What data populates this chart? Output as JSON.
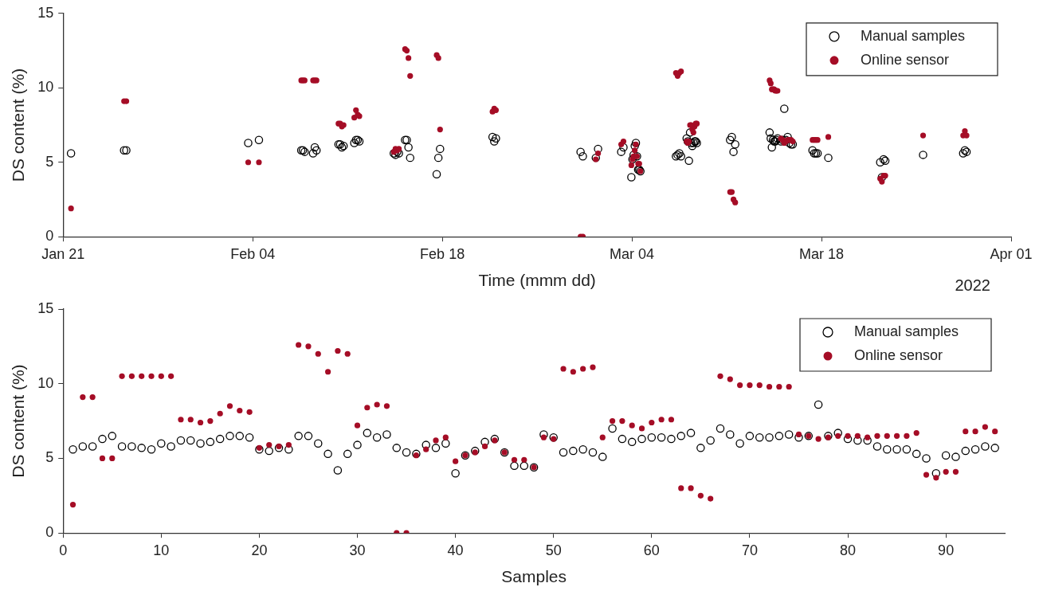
{
  "chart_data": [
    {
      "type": "scatter",
      "xlabel": "Time (mmm dd)",
      "ylabel": "DS content (%)",
      "annotations": [
        "2022"
      ],
      "legend": "top right",
      "marker": "circle",
      "xlim": [
        "2022-01-21",
        "2022-04-01"
      ],
      "xticks": [
        {
          "value": "2022-01-21",
          "label": "Jan 21"
        },
        {
          "value": "2022-02-04",
          "label": "Feb 04"
        },
        {
          "value": "2022-02-18",
          "label": "Feb 18"
        },
        {
          "value": "2022-03-04",
          "label": "Mar 04"
        },
        {
          "value": "2022-03-18",
          "label": "Mar 18"
        },
        {
          "value": "2022-04-01",
          "label": "Apr 01"
        }
      ],
      "ylim": [
        0,
        15
      ],
      "yticks": [
        0,
        5,
        10,
        15
      ],
      "x": [
        "2022-01-21T14:00",
        "2022-01-25T12:00",
        "2022-01-25T16:00",
        "2022-02-03T16:00",
        "2022-02-04T11:00",
        "2022-02-07T14:00",
        "2022-02-07T17:00",
        "2022-02-07T20:00",
        "2022-02-08T11:00",
        "2022-02-08T14:00",
        "2022-02-08T17:00",
        "2022-02-10T08:00",
        "2022-02-10T11:00",
        "2022-02-10T14:00",
        "2022-02-10T17:00",
        "2022-02-11T12:00",
        "2022-02-11T15:00",
        "2022-02-11T18:00",
        "2022-02-11T21:00",
        "2022-02-14T10:00",
        "2022-02-14T13:00",
        "2022-02-14T16:00",
        "2022-02-14T19:00",
        "2022-02-15T06:00",
        "2022-02-15T09:00",
        "2022-02-15T12:00",
        "2022-02-15T15:00",
        "2022-02-17T14:00",
        "2022-02-17T17:00",
        "2022-02-17T20:00",
        "2022-02-21T17:00",
        "2022-02-21T20:00",
        "2022-02-21T23:00",
        "2022-02-28T05:00",
        "2022-02-28T09:00",
        "2022-03-01T08:00",
        "2022-03-01T12:00",
        "2022-03-03T05:00",
        "2022-03-03T09:00",
        "2022-03-03T23:00",
        "2022-03-04T01:00",
        "2022-03-04T03:00",
        "2022-03-04T05:00",
        "2022-03-04T07:00",
        "2022-03-04T09:00",
        "2022-03-04T11:00",
        "2022-03-04T13:00",
        "2022-03-04T15:00",
        "2022-03-08T01:00",
        "2022-03-08T03:00",
        "2022-03-07T06:00",
        "2022-03-07T09:00",
        "2022-03-07T12:00",
        "2022-03-07T15:00",
        "2022-03-08T05:00",
        "2022-03-08T07:00",
        "2022-03-08T09:00",
        "2022-03-08T11:00",
        "2022-03-08T13:00",
        "2022-03-08T15:00",
        "2022-03-08T17:00",
        "2022-03-08T19:00",
        "2022-03-11T06:00",
        "2022-03-11T09:00",
        "2022-03-11T12:00",
        "2022-03-11T15:00",
        "2022-03-14T04:00",
        "2022-03-14T06:00",
        "2022-03-14T08:00",
        "2022-03-14T10:00",
        "2022-03-14T12:00",
        "2022-03-14T14:00",
        "2022-03-14T16:00",
        "2022-03-14T18:00",
        "2022-03-15T00:00",
        "2022-03-15T03:00",
        "2022-03-15T06:00",
        "2022-03-15T09:00",
        "2022-03-15T12:00",
        "2022-03-15T15:00",
        "2022-03-15T18:00",
        "2022-03-15T21:00",
        "2022-03-17T08:00",
        "2022-03-17T11:00",
        "2022-03-17T14:00",
        "2022-03-17T17:00",
        "2022-03-18T12:00",
        "2022-03-22T08:00",
        "2022-03-22T11:00",
        "2022-03-22T14:00",
        "2022-03-22T17:00",
        "2022-03-25T12:00",
        "2022-03-28T11:00",
        "2022-03-28T14:00",
        "2022-03-28T17:00"
      ],
      "series": [
        {
          "name": "Manual samples",
          "color": "#000000",
          "values": [
            5.6,
            5.8,
            5.8,
            6.3,
            6.5,
            5.8,
            5.8,
            5.7,
            5.6,
            6.0,
            5.8,
            6.2,
            6.2,
            6.0,
            6.1,
            6.3,
            6.5,
            6.5,
            6.4,
            5.6,
            5.5,
            5.7,
            5.6,
            6.5,
            6.5,
            6.0,
            5.3,
            4.2,
            5.3,
            5.9,
            6.7,
            6.4,
            6.6,
            5.7,
            5.4,
            5.3,
            5.9,
            5.7,
            6.0,
            4.0,
            5.2,
            5.5,
            6.1,
            6.3,
            5.4,
            4.5,
            4.5,
            4.4,
            6.6,
            6.4,
            5.4,
            5.5,
            5.6,
            5.4,
            5.1,
            7.0,
            6.3,
            6.1,
            6.3,
            6.4,
            6.4,
            6.3,
            6.5,
            6.7,
            5.7,
            6.2,
            7.0,
            6.6,
            6.0,
            6.5,
            6.4,
            6.4,
            6.5,
            6.6,
            6.4,
            6.5,
            8.6,
            6.5,
            6.7,
            6.3,
            6.2,
            6.2,
            5.8,
            5.6,
            5.6,
            5.6,
            5.3,
            5.0,
            4.0,
            5.2,
            5.1,
            5.5,
            5.6,
            5.8,
            5.7
          ]
        },
        {
          "name": "Online sensor",
          "color": "#a50d26",
          "values": [
            1.9,
            9.1,
            9.1,
            5.0,
            5.0,
            10.5,
            10.5,
            10.5,
            10.5,
            10.5,
            10.5,
            7.6,
            7.6,
            7.4,
            7.5,
            8.0,
            8.5,
            8.2,
            8.1,
            5.7,
            5.9,
            5.8,
            5.9,
            12.6,
            12.5,
            12.0,
            10.8,
            12.2,
            12.0,
            7.2,
            8.4,
            8.6,
            8.5,
            0,
            0,
            5.2,
            5.6,
            6.2,
            6.4,
            4.8,
            5.2,
            5.4,
            5.8,
            6.2,
            5.4,
            4.9,
            4.9,
            4.4,
            6.4,
            6.3,
            11.0,
            10.8,
            11.0,
            11.1,
            6.4,
            7.5,
            7.5,
            7.2,
            7.0,
            7.4,
            7.6,
            7.6,
            3.0,
            3.0,
            2.5,
            2.3,
            10.5,
            10.3,
            9.9,
            9.9,
            9.9,
            9.8,
            9.8,
            9.8,
            6.6,
            6.5,
            6.3,
            6.4,
            6.5,
            6.5,
            6.5,
            6.4,
            6.5,
            6.5,
            6.5,
            6.5,
            6.7,
            3.9,
            3.7,
            4.1,
            4.1,
            6.8,
            6.8,
            7.1,
            6.8
          ]
        }
      ]
    },
    {
      "type": "scatter",
      "xlabel": "Samples",
      "ylabel": "DS content (%)",
      "legend": "top right",
      "marker": "circle",
      "xlim": [
        0,
        96
      ],
      "xticks": [
        0,
        10,
        20,
        30,
        40,
        50,
        60,
        70,
        80,
        90
      ],
      "ylim": [
        0,
        15
      ],
      "yticks": [
        0,
        5,
        10,
        15
      ],
      "x": [
        1,
        2,
        3,
        4,
        5,
        6,
        7,
        8,
        9,
        10,
        11,
        12,
        13,
        14,
        15,
        16,
        17,
        18,
        19,
        20,
        21,
        22,
        23,
        24,
        25,
        26,
        27,
        28,
        29,
        30,
        31,
        32,
        33,
        34,
        35,
        36,
        37,
        38,
        39,
        40,
        41,
        42,
        43,
        44,
        45,
        46,
        47,
        48,
        49,
        50,
        51,
        52,
        53,
        54,
        55,
        56,
        57,
        58,
        59,
        60,
        61,
        62,
        63,
        64,
        65,
        66,
        67,
        68,
        69,
        70,
        71,
        72,
        73,
        74,
        75,
        76,
        77,
        78,
        79,
        80,
        81,
        82,
        83,
        84,
        85,
        86,
        87,
        88,
        89,
        90,
        91,
        92,
        93,
        94,
        95
      ],
      "series": [
        {
          "name": "Manual samples",
          "color": "#000000",
          "values": [
            5.6,
            5.8,
            5.8,
            6.3,
            6.5,
            5.8,
            5.8,
            5.7,
            5.6,
            6.0,
            5.8,
            6.2,
            6.2,
            6.0,
            6.1,
            6.3,
            6.5,
            6.5,
            6.4,
            5.6,
            5.5,
            5.7,
            5.6,
            6.5,
            6.5,
            6.0,
            5.3,
            4.2,
            5.3,
            5.9,
            6.7,
            6.4,
            6.6,
            5.7,
            5.4,
            5.3,
            5.9,
            5.7,
            6.0,
            4.0,
            5.2,
            5.5,
            6.1,
            6.3,
            5.4,
            4.5,
            4.5,
            4.4,
            6.6,
            6.4,
            5.4,
            5.5,
            5.6,
            5.4,
            5.1,
            7.0,
            6.3,
            6.1,
            6.3,
            6.4,
            6.4,
            6.3,
            6.5,
            6.7,
            5.7,
            6.2,
            7.0,
            6.6,
            6.0,
            6.5,
            6.4,
            6.4,
            6.5,
            6.6,
            6.4,
            6.5,
            8.6,
            6.5,
            6.7,
            6.3,
            6.2,
            6.2,
            5.8,
            5.6,
            5.6,
            5.6,
            5.3,
            5.0,
            4.0,
            5.2,
            5.1,
            5.5,
            5.6,
            5.8,
            5.7
          ]
        },
        {
          "name": "Online sensor",
          "color": "#a50d26",
          "values": [
            1.9,
            9.1,
            9.1,
            5.0,
            5.0,
            10.5,
            10.5,
            10.5,
            10.5,
            10.5,
            10.5,
            7.6,
            7.6,
            7.4,
            7.5,
            8.0,
            8.5,
            8.2,
            8.1,
            5.7,
            5.9,
            5.8,
            5.9,
            12.6,
            12.5,
            12.0,
            10.8,
            12.2,
            12.0,
            7.2,
            8.4,
            8.6,
            8.5,
            0,
            0,
            5.2,
            5.6,
            6.2,
            6.4,
            4.8,
            5.2,
            5.4,
            5.8,
            6.2,
            5.4,
            4.9,
            4.9,
            4.4,
            6.4,
            6.3,
            11.0,
            10.8,
            11.0,
            11.1,
            6.4,
            7.5,
            7.5,
            7.2,
            7.0,
            7.4,
            7.6,
            7.6,
            3.0,
            3.0,
            2.5,
            2.3,
            10.5,
            10.3,
            9.9,
            9.9,
            9.9,
            9.8,
            9.8,
            9.8,
            6.6,
            6.5,
            6.3,
            6.4,
            6.5,
            6.5,
            6.5,
            6.4,
            6.5,
            6.5,
            6.5,
            6.5,
            6.7,
            3.9,
            3.7,
            4.1,
            4.1,
            6.8,
            6.8,
            7.1,
            6.8
          ]
        }
      ]
    }
  ]
}
